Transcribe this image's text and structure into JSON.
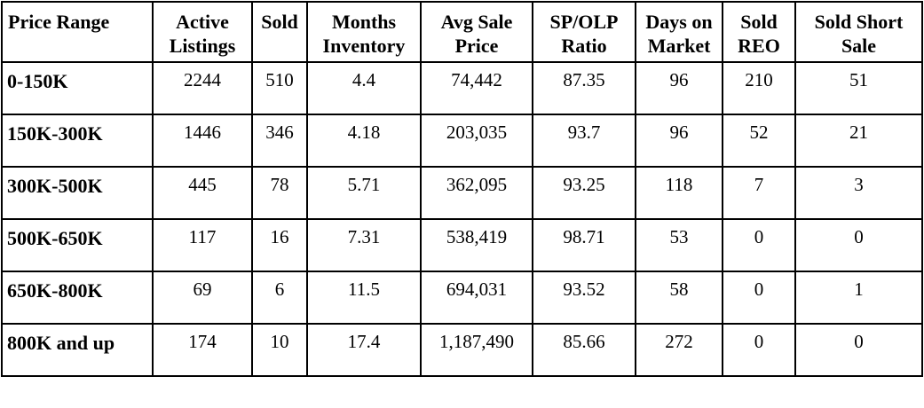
{
  "table": {
    "headers": [
      "Price Range",
      "Active Listings",
      "Sold",
      "Months Inventory",
      "Avg Sale Price",
      "SP/OLP Ratio",
      "Days on Market",
      "Sold REO",
      "Sold Short Sale"
    ],
    "rows": [
      [
        "0-150K",
        "2244",
        "510",
        "4.4",
        "74,442",
        "87.35",
        "96",
        "210",
        "51"
      ],
      [
        "150K-300K",
        "1446",
        "346",
        "4.18",
        "203,035",
        "93.7",
        "96",
        "52",
        "21"
      ],
      [
        "300K-500K",
        "445",
        "78",
        "5.71",
        "362,095",
        "93.25",
        "118",
        "7",
        "3"
      ],
      [
        "500K-650K",
        "117",
        "16",
        "7.31",
        "538,419",
        "98.71",
        "53",
        "0",
        "0"
      ],
      [
        "650K-800K",
        "69",
        "6",
        "11.5",
        "694,031",
        "93.52",
        "58",
        "0",
        "1"
      ],
      [
        "800K and up",
        "174",
        "10",
        "17.4",
        "1,187,490",
        "85.66",
        "272",
        "0",
        "0"
      ]
    ]
  }
}
